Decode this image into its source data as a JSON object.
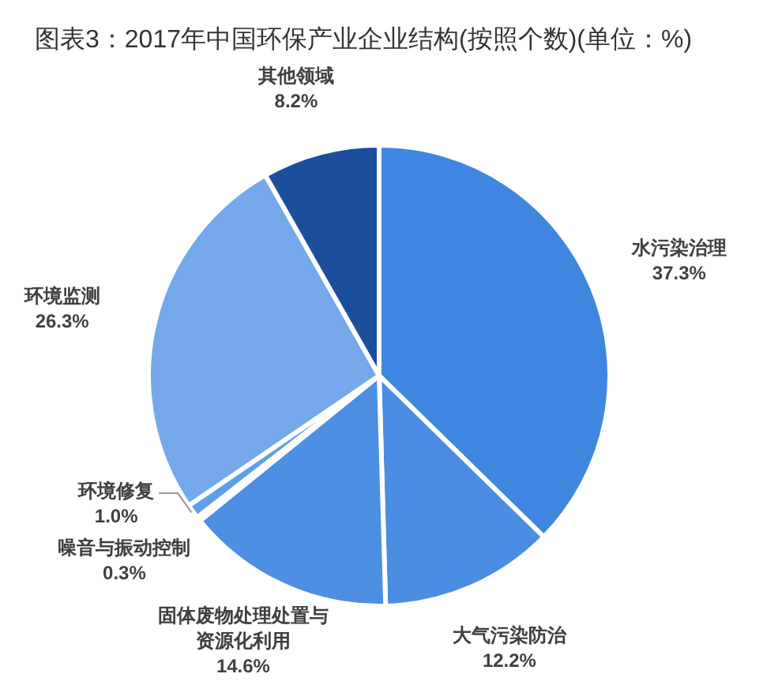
{
  "chart_data": {
    "type": "pie",
    "title": "图表3：2017年中国环保产业企业结构(按照个数)(单位：%)",
    "categories": [
      "水污染治理",
      "大气污染防治",
      "固体废物处理处置与资源化利用",
      "噪音与振动控制",
      "环境修复",
      "环境监测",
      "其他领域"
    ],
    "values": [
      37.3,
      12.2,
      14.6,
      0.3,
      1.0,
      26.3,
      8.2
    ],
    "value_labels": [
      "37.3%",
      "12.2%",
      "14.6%",
      "0.3%",
      "1.0%",
      "26.3%",
      "8.2%"
    ],
    "colors": [
      "#3f86e0",
      "#4a8de2",
      "#4c8fe3",
      "#5597e5",
      "#5f9fe7",
      "#74a8eb",
      "#1b4e9b"
    ]
  }
}
